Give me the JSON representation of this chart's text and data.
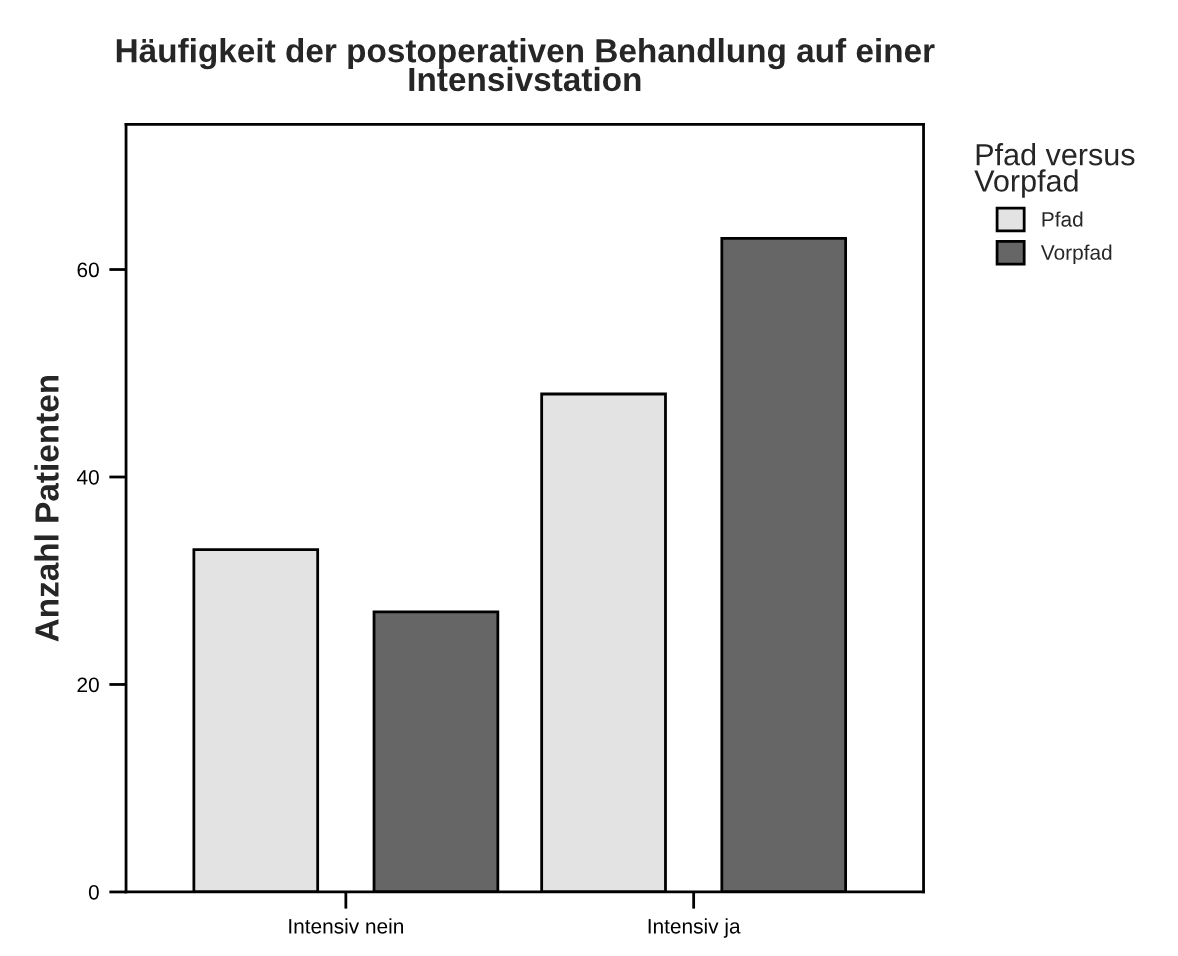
{
  "chart_data": {
    "type": "bar",
    "title": "Häufigkeit der postoperativen Behandlung auf einer\nIntensivstation",
    "ylabel": "Anzahl Patienten",
    "legend_title": "Pfad versus\nVorpfad",
    "categories": [
      "Intensiv nein",
      "Intensiv ja"
    ],
    "series": [
      {
        "name": "Pfad",
        "color": "#e3e3e3",
        "values": [
          33,
          48
        ]
      },
      {
        "name": "Vorpfad",
        "color": "#666666",
        "values": [
          27,
          63
        ]
      }
    ],
    "ylim": [
      0,
      74
    ],
    "yticks": [
      0,
      20,
      40,
      60
    ],
    "grid": false,
    "legend": "top right"
  }
}
